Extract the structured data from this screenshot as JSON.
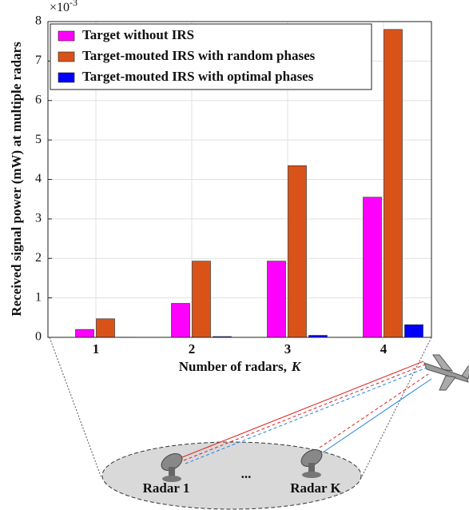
{
  "chart_data": {
    "type": "bar",
    "ylabel": "Received signal power (mW) at multiple radars",
    "xlabel": "Number of radars,",
    "xlabel_symbol": "K",
    "y_multiplier": "×10",
    "y_multiplier_exp": "-3",
    "categories": [
      "1",
      "2",
      "3",
      "4"
    ],
    "series": [
      {
        "name": "Target without IRS",
        "color": "#ff00ff",
        "values": [
          0.2,
          0.86,
          1.93,
          3.55
        ]
      },
      {
        "name": "Target-mouted IRS with random phases",
        "color": "#d95319",
        "values": [
          0.47,
          1.93,
          4.35,
          7.8
        ]
      },
      {
        "name": "Target-mouted IRS with optimal phases",
        "color": "#0000ff",
        "values": [
          0.005,
          0.02,
          0.05,
          0.32
        ]
      }
    ],
    "ylim": [
      0,
      8
    ],
    "yticks": [
      0,
      1,
      2,
      3,
      4,
      5,
      6,
      7,
      8
    ],
    "grid": true,
    "legend": "upper-left"
  },
  "diagram": {
    "labels": [
      "Radar 1",
      "...",
      "Radar K"
    ]
  }
}
